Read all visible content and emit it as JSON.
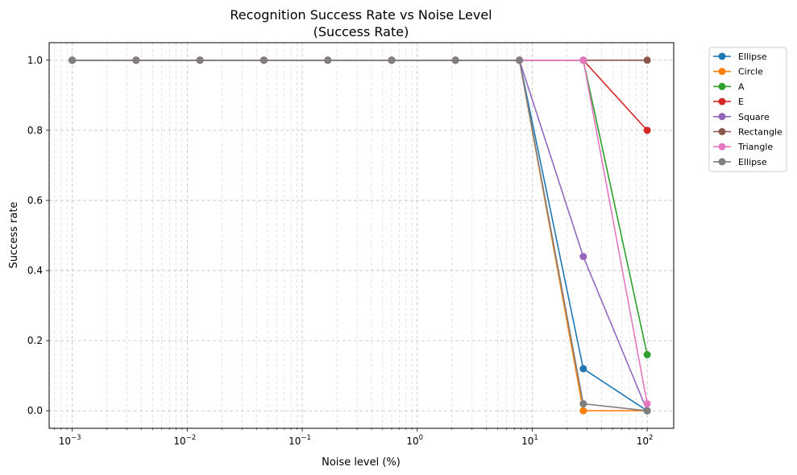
{
  "chart_data": {
    "type": "line",
    "title": "Recognition Success Rate vs Noise Level",
    "subtitle": "(Success Rate)",
    "xlabel": "Noise level (%)",
    "ylabel": "Success rate",
    "x_scale": "log",
    "xlim": [
      0.00063,
      170
    ],
    "ylim": [
      -0.05,
      1.05
    ],
    "grid": true,
    "legend_position": "outside-top-right",
    "x_ticks": [
      {
        "value": 0.001,
        "base": "10",
        "exp": "−3"
      },
      {
        "value": 0.01,
        "base": "10",
        "exp": "−2"
      },
      {
        "value": 0.1,
        "base": "10",
        "exp": "−1"
      },
      {
        "value": 1,
        "base": "10",
        "exp": "0"
      },
      {
        "value": 10,
        "base": "10",
        "exp": "1"
      },
      {
        "value": 100,
        "base": "10",
        "exp": "2"
      }
    ],
    "y_ticks": [
      {
        "value": 0.0,
        "label": "0.0"
      },
      {
        "value": 0.2,
        "label": "0.2"
      },
      {
        "value": 0.4,
        "label": "0.4"
      },
      {
        "value": 0.6,
        "label": "0.6"
      },
      {
        "value": 0.8,
        "label": "0.8"
      },
      {
        "value": 1.0,
        "label": "1.0"
      }
    ],
    "x": [
      0.001,
      0.00359,
      0.0129,
      0.0464,
      0.167,
      0.599,
      2.15,
      7.74,
      27.8,
      100
    ],
    "series": [
      {
        "name": "Ellipse",
        "color": "#1f77b4",
        "values": [
          1,
          1,
          1,
          1,
          1,
          1,
          1,
          1,
          0.12,
          0.0
        ]
      },
      {
        "name": "Circle",
        "color": "#ff7f0e",
        "values": [
          1,
          1,
          1,
          1,
          1,
          1,
          1,
          1,
          0.0,
          0.0
        ]
      },
      {
        "name": "A",
        "color": "#2ca02c",
        "values": [
          1,
          1,
          1,
          1,
          1,
          1,
          1,
          1,
          1.0,
          0.16
        ]
      },
      {
        "name": "E",
        "color": "#d62728",
        "values": [
          1,
          1,
          1,
          1,
          1,
          1,
          1,
          1,
          1.0,
          0.8
        ]
      },
      {
        "name": "Square",
        "color": "#9467bd",
        "values": [
          1,
          1,
          1,
          1,
          1,
          1,
          1,
          1,
          0.44,
          0.0
        ]
      },
      {
        "name": "Rectangle",
        "color": "#8c564b",
        "values": [
          1,
          1,
          1,
          1,
          1,
          1,
          1,
          1,
          1.0,
          1.0
        ]
      },
      {
        "name": "Triangle",
        "color": "#e377c2",
        "values": [
          1,
          1,
          1,
          1,
          1,
          1,
          1,
          1,
          1.0,
          0.02
        ]
      },
      {
        "name": "Ellipse",
        "color": "#7f7f7f",
        "values": [
          1,
          1,
          1,
          1,
          1,
          1,
          1,
          1,
          0.02,
          0.0
        ]
      }
    ]
  }
}
